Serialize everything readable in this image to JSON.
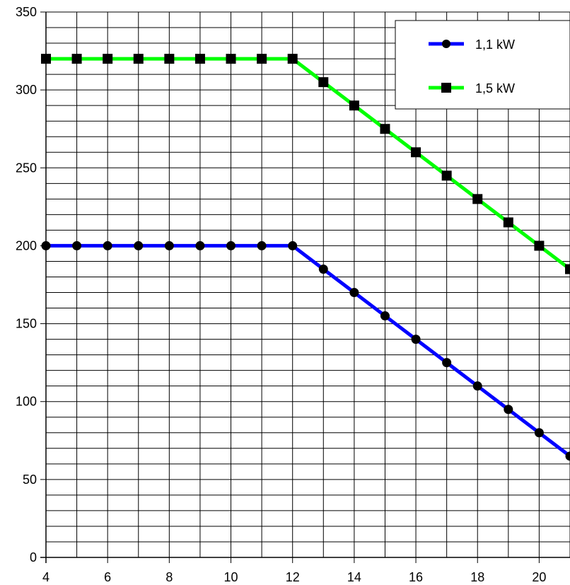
{
  "chart_data": {
    "type": "line",
    "title": "",
    "xlabel": "",
    "ylabel": "",
    "xlim": [
      4,
      21
    ],
    "ylim": [
      0,
      350
    ],
    "x_ticks": [
      4,
      6,
      8,
      10,
      12,
      14,
      16,
      18,
      20
    ],
    "x_tick_labels": [
      "4",
      "6",
      "8",
      "10",
      "12",
      "14",
      "16",
      "18",
      "20"
    ],
    "y_ticks": [
      0,
      50,
      100,
      150,
      200,
      250,
      300,
      350
    ],
    "y_tick_labels": [
      "0",
      "50",
      "100",
      "150",
      "200",
      "250",
      "300",
      "350"
    ],
    "x_minor_step": 1,
    "y_minor_step": 10,
    "grid": true,
    "legend_position": "top-right",
    "x": [
      4,
      5,
      6,
      7,
      8,
      9,
      10,
      11,
      12,
      13,
      14,
      15,
      16,
      17,
      18,
      19,
      20,
      21
    ],
    "series": [
      {
        "name": "1,1 kW",
        "color": "#0000ff",
        "marker": "circle",
        "values": [
          200,
          200,
          200,
          200,
          200,
          200,
          200,
          200,
          200,
          185,
          170,
          155,
          140,
          125,
          110,
          95,
          80,
          65
        ]
      },
      {
        "name": "1,5 kW",
        "color": "#00ff00",
        "marker": "square",
        "values": [
          320,
          320,
          320,
          320,
          320,
          320,
          320,
          320,
          320,
          305,
          290,
          275,
          260,
          245,
          230,
          215,
          200,
          185
        ]
      }
    ]
  }
}
